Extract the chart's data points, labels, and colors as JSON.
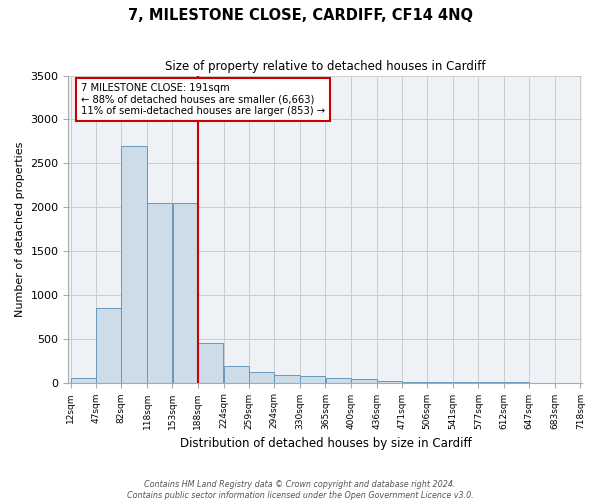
{
  "title": "7, MILESTONE CLOSE, CARDIFF, CF14 4NQ",
  "subtitle": "Size of property relative to detached houses in Cardiff",
  "xlabel": "Distribution of detached houses by size in Cardiff",
  "ylabel": "Number of detached properties",
  "annotation_line1": "7 MILESTONE CLOSE: 191sqm",
  "annotation_line2": "← 88% of detached houses are smaller (6,663)",
  "annotation_line3": "11% of semi-detached houses are larger (853) →",
  "bar_edges": [
    12,
    47,
    82,
    118,
    153,
    188,
    224,
    259,
    294,
    330,
    365,
    400,
    436,
    471,
    506,
    541,
    577,
    612,
    647,
    683,
    718
  ],
  "bar_heights": [
    50,
    850,
    2700,
    2050,
    2050,
    450,
    185,
    115,
    90,
    75,
    50,
    35,
    20,
    10,
    5,
    3,
    2,
    1,
    0,
    0
  ],
  "bar_color": "#ccdce8",
  "bar_edgecolor": "#6699bb",
  "vline_color": "#cc0000",
  "vline_x": 188,
  "ylim": [
    0,
    3500
  ],
  "yticks": [
    0,
    500,
    1000,
    1500,
    2000,
    2500,
    3000,
    3500
  ],
  "grid_color": "#cccccc",
  "background_color": "#eef2f6",
  "footnote1": "Contains HM Land Registry data © Crown copyright and database right 2024.",
  "footnote2": "Contains public sector information licensed under the Open Government Licence v3.0."
}
